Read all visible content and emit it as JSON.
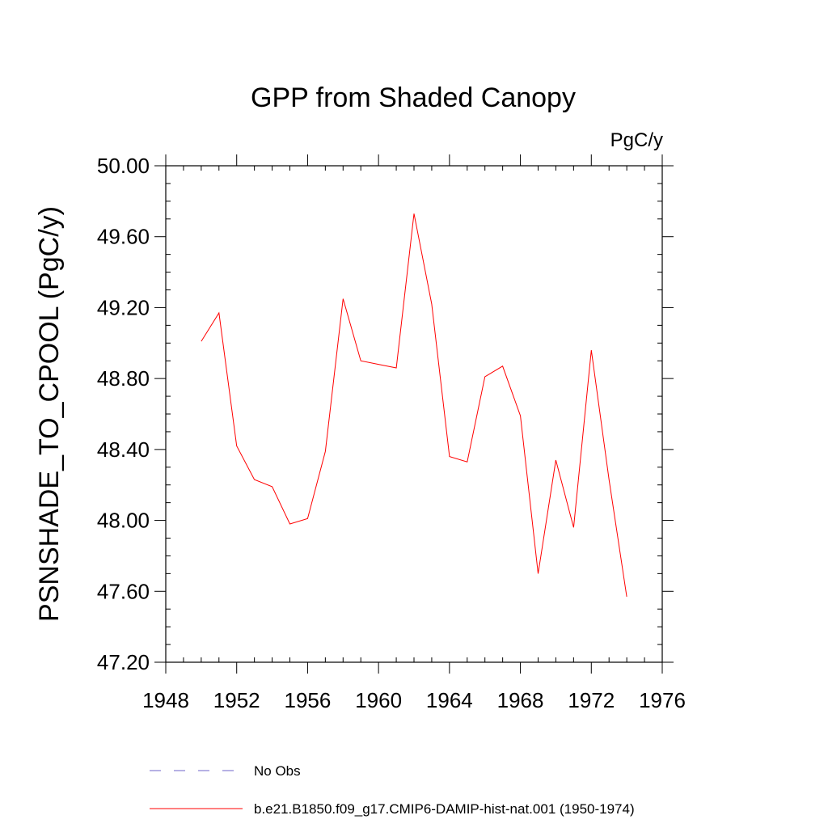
{
  "chart_data": {
    "type": "line",
    "title": "GPP from Shaded Canopy",
    "units_label": "PgC/y",
    "xlabel": "",
    "ylabel": "PSNSHADE_TO_CPOOL  (PgC/y)",
    "xlim": [
      1948,
      1976
    ],
    "ylim": [
      47.2,
      50.0
    ],
    "x_ticks": [
      1948,
      1952,
      1956,
      1960,
      1964,
      1968,
      1972,
      1976
    ],
    "x_tick_labels": [
      "1948",
      "1952",
      "1956",
      "1960",
      "1964",
      "1968",
      "1972",
      "1976"
    ],
    "y_ticks": [
      47.2,
      47.6,
      48.0,
      48.4,
      48.8,
      49.2,
      49.6,
      50.0
    ],
    "y_tick_labels": [
      "47.20",
      "47.60",
      "48.00",
      "48.40",
      "48.80",
      "49.20",
      "49.60",
      "50.00"
    ],
    "grid": false,
    "legend_placement": "bottom",
    "series": [
      {
        "name": "b.e21.B1850.f09_g17.CMIP6-DAMIP-hist-nat.001 (1950-1974)",
        "color": "#ff0000",
        "style": "solid",
        "x": [
          1950,
          1951,
          1952,
          1953,
          1954,
          1955,
          1956,
          1957,
          1958,
          1959,
          1960,
          1961,
          1962,
          1963,
          1964,
          1965,
          1966,
          1967,
          1968,
          1969,
          1970,
          1971,
          1972,
          1973,
          1974
        ],
        "values": [
          49.01,
          49.17,
          48.42,
          48.23,
          48.19,
          47.98,
          48.01,
          48.39,
          49.25,
          48.9,
          48.88,
          48.86,
          49.73,
          49.22,
          48.36,
          48.33,
          48.81,
          48.87,
          48.59,
          47.7,
          48.34,
          47.96,
          48.96,
          48.23,
          47.57
        ]
      }
    ],
    "legend": [
      {
        "label": "No Obs",
        "color": "#6f63c8",
        "style": "dashed"
      },
      {
        "label": "b.e21.B1850.f09_g17.CMIP6-DAMIP-hist-nat.001 (1950-1974)",
        "color": "#ff0000",
        "style": "solid"
      }
    ]
  }
}
